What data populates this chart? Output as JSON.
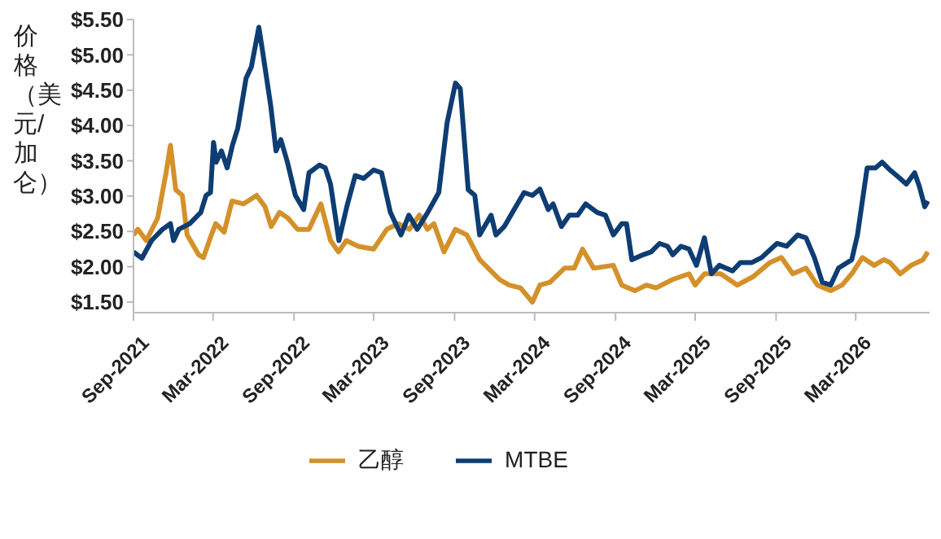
{
  "chart_data": {
    "type": "line",
    "ylabel": "价格（美元/加仑）",
    "xlim": [
      "2021-09-01",
      "2026-08-16"
    ],
    "ylim": [
      1.35,
      5.5
    ],
    "xticks": [
      {
        "value": "2021-09",
        "label": "Sep-2021"
      },
      {
        "value": "2022-03",
        "label": "Mar-2022"
      },
      {
        "value": "2022-09",
        "label": "Sep-2022"
      },
      {
        "value": "2023-03",
        "label": "Mar-2023"
      },
      {
        "value": "2023-09",
        "label": "Sep-2023"
      },
      {
        "value": "2024-03",
        "label": "Mar-2024"
      },
      {
        "value": "2024-09",
        "label": "Sep-2024"
      },
      {
        "value": "2025-03",
        "label": "Mar-2025"
      },
      {
        "value": "2025-09",
        "label": "Sep-2025"
      },
      {
        "value": "2026-03",
        "label": "Mar-2026"
      }
    ],
    "yticks": [
      {
        "value": 1.5,
        "label": "$1.50"
      },
      {
        "value": 2,
        "label": "$2.00"
      },
      {
        "value": 2.5,
        "label": "$2.50"
      },
      {
        "value": 3,
        "label": "$3.00"
      },
      {
        "value": 3.5,
        "label": "$3.50"
      },
      {
        "value": 4,
        "label": "$4.00"
      },
      {
        "value": 4.5,
        "label": "$4.50"
      },
      {
        "value": 5,
        "label": "$5.00"
      },
      {
        "value": 5.5,
        "label": "$5.50"
      }
    ],
    "grid": false,
    "legend": "bottom",
    "series": [
      {
        "name": "乙醇",
        "color": "#d4912a",
        "x": [
          "2021-09-01",
          "2021-09-11",
          "2021-09-30",
          "2021-10-26",
          "2021-11-14",
          "2021-11-24",
          "2021-12-06",
          "2021-12-21",
          "2022-01-01",
          "2022-01-27",
          "2022-02-07",
          "2022-02-25",
          "2022-03-07",
          "2022-03-26",
          "2022-04-13",
          "2022-05-09",
          "2022-06-08",
          "2022-06-27",
          "2022-07-11",
          "2022-07-30",
          "2022-08-18",
          "2022-09-09",
          "2022-10-05",
          "2022-11-01",
          "2022-11-23",
          "2022-12-11",
          "2022-12-29",
          "2023-01-25",
          "2023-03-01",
          "2023-03-31",
          "2023-04-26",
          "2023-05-21",
          "2023-06-13",
          "2023-07-01",
          "2023-07-16",
          "2023-08-08",
          "2023-09-03",
          "2023-09-29",
          "2023-10-28",
          "2023-12-12",
          "2024-01-03",
          "2024-01-29",
          "2024-02-25",
          "2024-03-13",
          "2024-04-05",
          "2024-05-08",
          "2024-05-30",
          "2024-06-18",
          "2024-07-13",
          "2024-08-27",
          "2024-09-15",
          "2024-10-15",
          "2024-11-10",
          "2024-12-02",
          "2025-01-09",
          "2025-02-15",
          "2025-03-01",
          "2025-03-22",
          "2025-04-28",
          "2025-06-05",
          "2025-07-11",
          "2025-08-18",
          "2025-09-13",
          "2025-10-09",
          "2025-11-08",
          "2025-12-04",
          "2026-01-03",
          "2026-01-29",
          "2026-02-20",
          "2026-03-16",
          "2026-04-12",
          "2026-05-04",
          "2026-05-18",
          "2026-06-10",
          "2026-07-05",
          "2026-08-01",
          "2026-08-12"
        ],
        "values": [
          2.45,
          2.53,
          2.37,
          2.69,
          3.33,
          3.72,
          3.09,
          3.01,
          2.45,
          2.17,
          2.13,
          2.45,
          2.61,
          2.49,
          2.93,
          2.89,
          3.01,
          2.85,
          2.57,
          2.77,
          2.69,
          2.53,
          2.53,
          2.89,
          2.37,
          2.21,
          2.37,
          2.29,
          2.25,
          2.53,
          2.61,
          2.53,
          2.73,
          2.53,
          2.61,
          2.21,
          2.53,
          2.45,
          2.1,
          1.82,
          1.74,
          1.7,
          1.5,
          1.74,
          1.78,
          1.98,
          1.98,
          2.25,
          1.98,
          2.02,
          1.74,
          1.66,
          1.74,
          1.7,
          1.82,
          1.9,
          1.74,
          1.9,
          1.9,
          1.74,
          1.86,
          2.06,
          2.13,
          1.9,
          1.98,
          1.74,
          1.66,
          1.74,
          1.9,
          2.13,
          2.02,
          2.1,
          2.06,
          1.9,
          2.02,
          2.1,
          2.21
        ]
      },
      {
        "name": "MTBE",
        "color": "#0d3d73",
        "x": [
          "2021-09-01",
          "2021-09-20",
          "2021-10-12",
          "2021-11-06",
          "2021-11-24",
          "2021-12-01",
          "2021-12-13",
          "2022-01-07",
          "2022-02-01",
          "2022-02-13",
          "2022-02-23",
          "2022-03-02",
          "2022-03-08",
          "2022-03-20",
          "2022-04-02",
          "2022-04-14",
          "2022-04-26",
          "2022-05-15",
          "2022-05-27",
          "2022-06-13",
          "2022-06-21",
          "2022-07-10",
          "2022-07-22",
          "2022-08-02",
          "2022-08-17",
          "2022-09-04",
          "2022-09-23",
          "2022-10-05",
          "2022-10-29",
          "2022-11-11",
          "2022-11-23",
          "2022-12-12",
          "2022-12-30",
          "2023-01-18",
          "2023-02-06",
          "2023-03-01",
          "2023-03-19",
          "2023-04-08",
          "2023-05-02",
          "2023-05-20",
          "2023-06-08",
          "2023-07-02",
          "2023-07-27",
          "2023-08-15",
          "2023-09-03",
          "2023-09-14",
          "2023-10-02",
          "2023-10-17",
          "2023-10-28",
          "2023-11-23",
          "2023-12-04",
          "2023-12-23",
          "2024-01-18",
          "2024-02-06",
          "2024-02-25",
          "2024-03-13",
          "2024-04-01",
          "2024-04-12",
          "2024-05-01",
          "2024-05-19",
          "2024-06-07",
          "2024-06-25",
          "2024-07-21",
          "2024-08-09",
          "2024-08-27",
          "2024-09-15",
          "2024-09-26",
          "2024-10-08",
          "2024-11-03",
          "2024-11-21",
          "2024-12-10",
          "2024-12-28",
          "2025-01-09",
          "2025-01-28",
          "2025-02-15",
          "2025-03-04",
          "2025-03-22",
          "2025-04-07",
          "2025-04-25",
          "2025-05-25",
          "2025-06-12",
          "2025-07-08",
          "2025-07-30",
          "2025-09-03",
          "2025-09-25",
          "2025-10-20",
          "2025-11-08",
          "2025-11-27",
          "2025-12-15",
          "2026-01-03",
          "2026-01-21",
          "2026-02-20",
          "2026-03-05",
          "2026-03-27",
          "2026-04-15",
          "2026-04-30",
          "2026-05-18",
          "2026-06-10",
          "2026-06-24",
          "2026-07-13",
          "2026-07-24",
          "2026-08-05",
          "2026-08-12"
        ],
        "values": [
          2.21,
          2.12,
          2.37,
          2.53,
          2.61,
          2.37,
          2.53,
          2.61,
          2.77,
          3.01,
          3.05,
          3.76,
          3.48,
          3.64,
          3.4,
          3.72,
          3.96,
          4.67,
          4.83,
          5.39,
          5.07,
          4.28,
          3.64,
          3.8,
          3.48,
          3.01,
          2.81,
          3.33,
          3.44,
          3.4,
          3.17,
          2.37,
          2.85,
          3.29,
          3.25,
          3.37,
          3.33,
          2.77,
          2.45,
          2.73,
          2.53,
          2.77,
          3.05,
          4.04,
          4.6,
          4.52,
          3.09,
          3.01,
          2.45,
          2.73,
          2.45,
          2.57,
          2.85,
          3.05,
          3.01,
          3.1,
          2.81,
          2.89,
          2.57,
          2.73,
          2.73,
          2.89,
          2.77,
          2.73,
          2.45,
          2.61,
          2.61,
          2.1,
          2.17,
          2.21,
          2.33,
          2.29,
          2.17,
          2.29,
          2.25,
          2.02,
          2.41,
          1.9,
          2.02,
          1.94,
          2.06,
          2.06,
          2.13,
          2.33,
          2.29,
          2.45,
          2.41,
          2.13,
          1.78,
          1.74,
          1.98,
          2.1,
          2.45,
          3.4,
          3.4,
          3.48,
          3.37,
          3.25,
          3.17,
          3.33,
          3.13,
          2.85,
          2.93
        ]
      }
    ]
  }
}
